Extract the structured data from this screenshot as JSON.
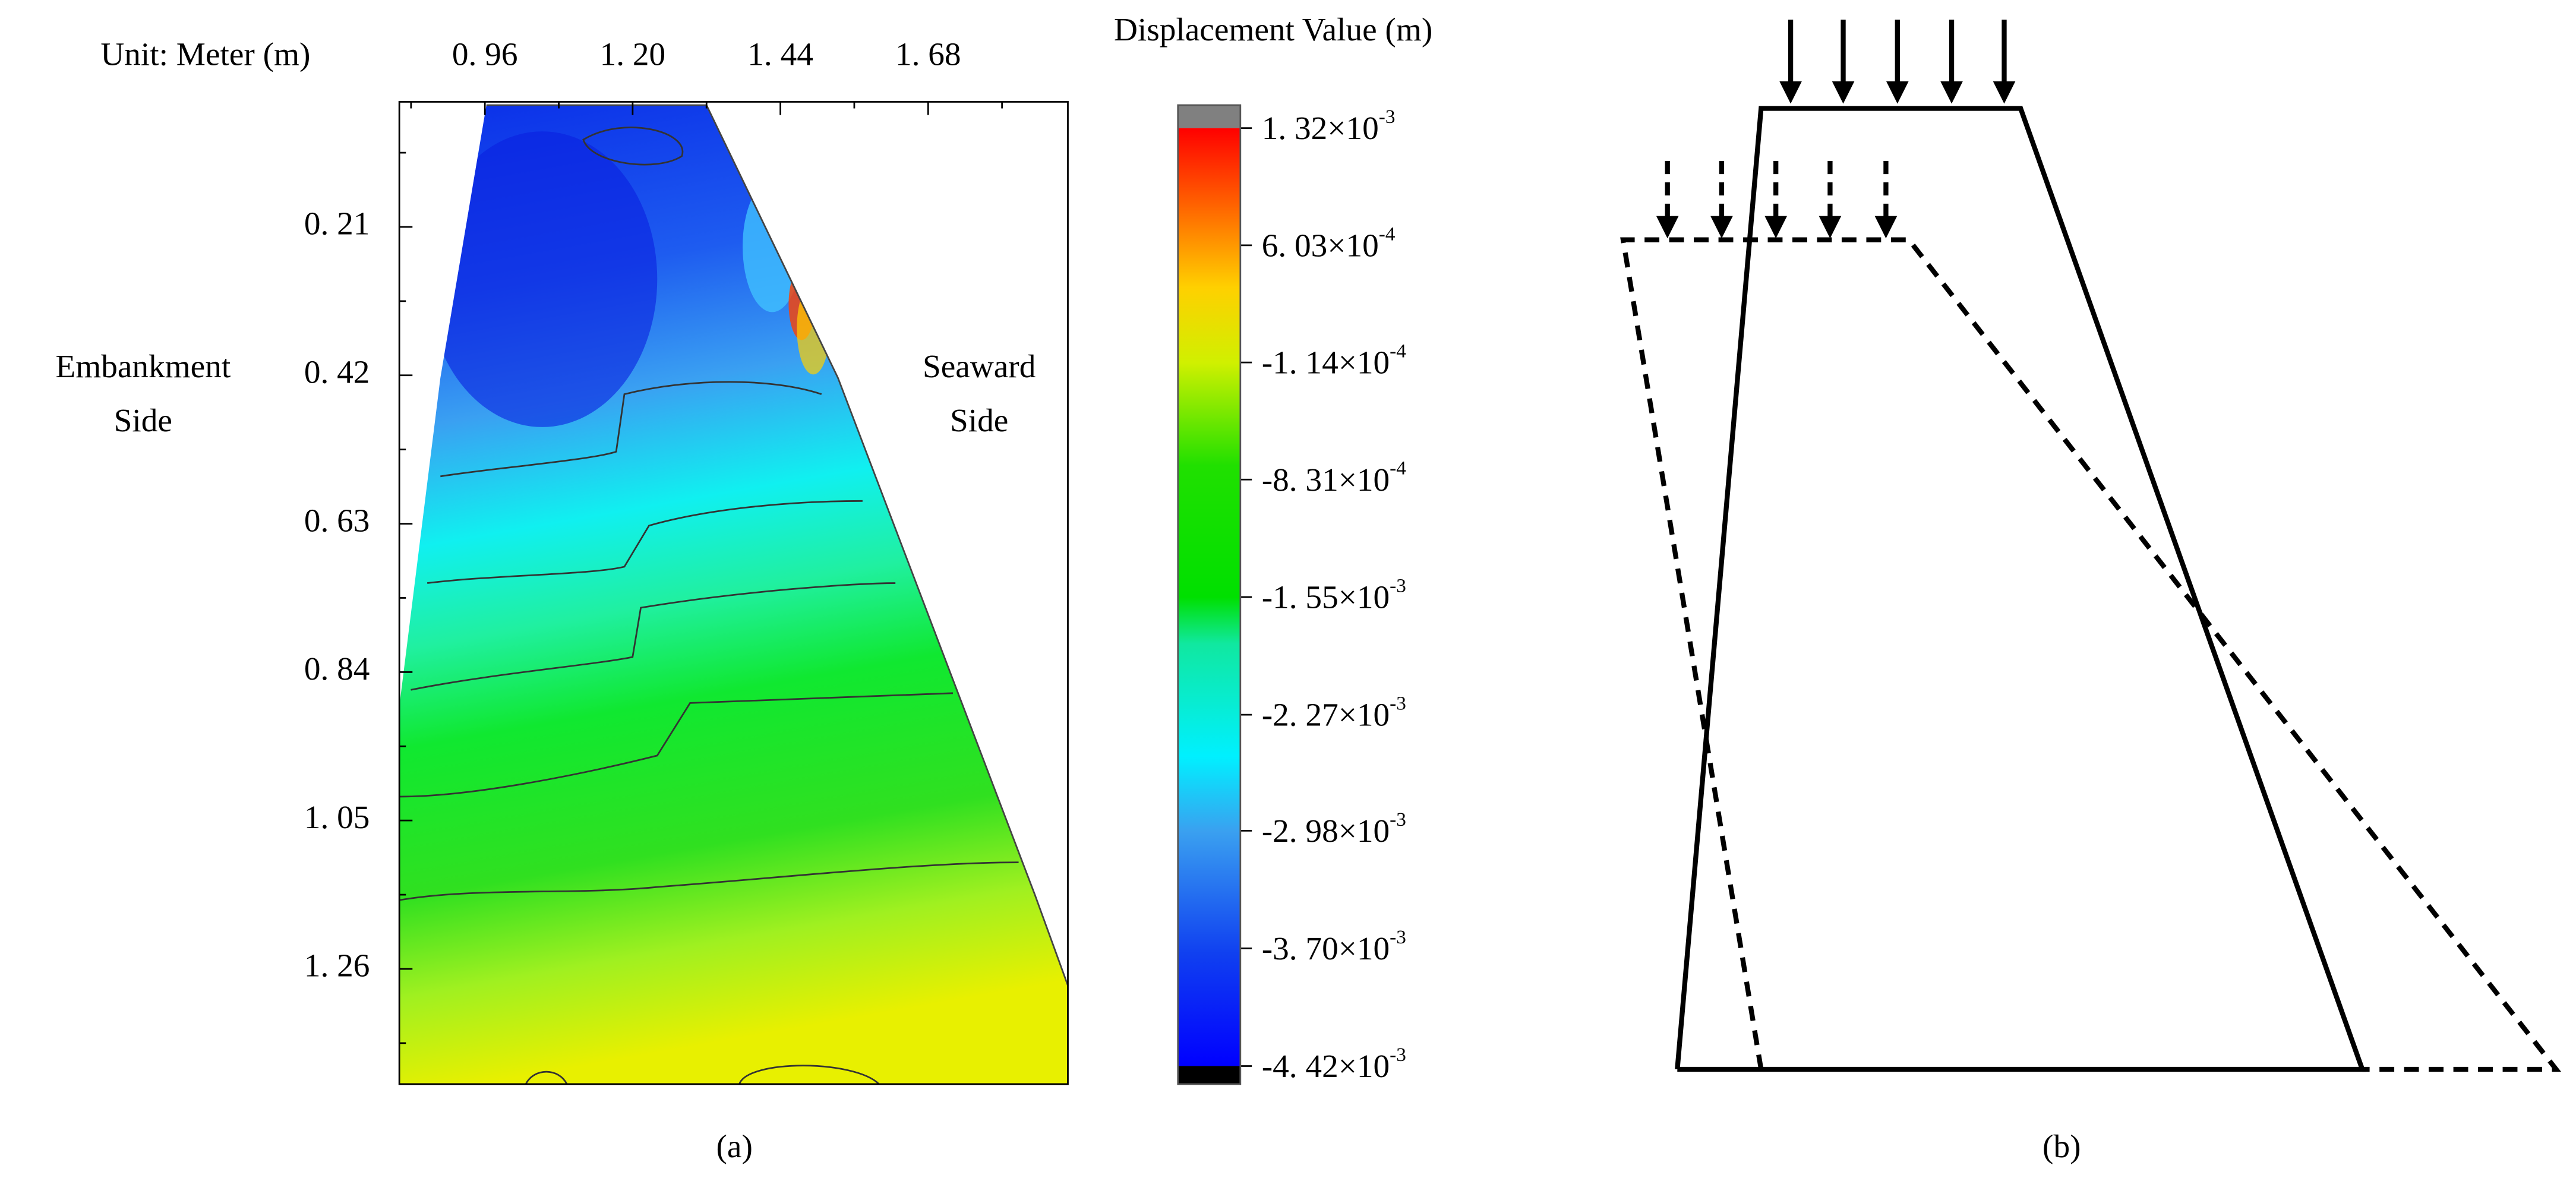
{
  "panel_a": {
    "unit_label": "Unit: Meter (m)",
    "left_label": [
      "Embankment",
      "Side"
    ],
    "right_label": [
      "Seaward",
      "Side"
    ],
    "xlim": [
      0.821,
      1.907
    ],
    "xticks": [
      {
        "value": 0.96,
        "label": "0. 96"
      },
      {
        "value": 1.2,
        "label": "1. 20"
      },
      {
        "value": 1.44,
        "label": "1. 44"
      },
      {
        "value": 1.68,
        "label": "1. 68"
      }
    ],
    "ylim": [
      0.033,
      1.423
    ],
    "yticks": [
      {
        "value": 0.21,
        "label": "0. 21"
      },
      {
        "value": 0.42,
        "label": "0. 42"
      },
      {
        "value": 0.63,
        "label": "0. 63"
      },
      {
        "value": 0.84,
        "label": "0. 84"
      },
      {
        "value": 1.05,
        "label": "1. 05"
      },
      {
        "value": 1.26,
        "label": "1. 26"
      }
    ],
    "colorbar": {
      "title": "Displacement Value (m)",
      "clim": [
        -0.00442,
        0.00132
      ],
      "ticks": [
        {
          "value": 0.00132,
          "mantissa": "1. 32×10",
          "exponent": "-3"
        },
        {
          "value": 0.000603,
          "mantissa": "6. 03×10",
          "exponent": "-4"
        },
        {
          "value": -0.000114,
          "mantissa": "-1. 14×10",
          "exponent": "-4"
        },
        {
          "value": -0.000831,
          "mantissa": "-8. 31×10",
          "exponent": "-4"
        },
        {
          "value": -0.00155,
          "mantissa": "-1. 55×10",
          "exponent": "-3"
        },
        {
          "value": -0.00227,
          "mantissa": "-2. 27×10",
          "exponent": "-3"
        },
        {
          "value": -0.00298,
          "mantissa": "-2. 98×10",
          "exponent": "-3"
        },
        {
          "value": -0.0037,
          "mantissa": "-3. 70×10",
          "exponent": "-3"
        },
        {
          "value": -0.00442,
          "mantissa": "-4. 42×10",
          "exponent": "-3"
        }
      ]
    },
    "caption": "(a)"
  },
  "panel_b": {
    "caption": "(b)"
  }
}
